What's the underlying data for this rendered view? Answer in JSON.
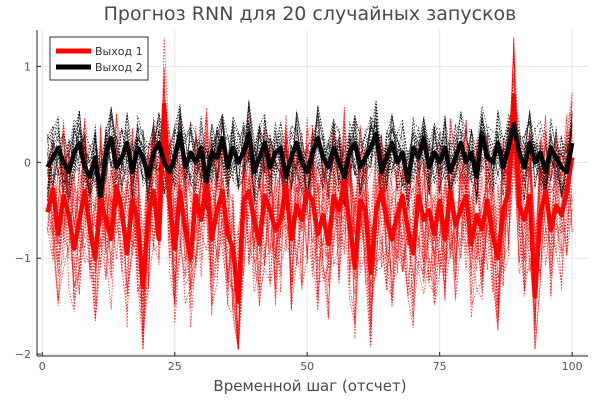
{
  "chart_data": {
    "type": "line",
    "title": "Прогноз RNN для 20 случайных запусков",
    "xlabel": "Временной шаг (отсчет)",
    "ylabel": "",
    "xlim": [
      -1,
      103
    ],
    "ylim": [
      -2.02,
      1.38
    ],
    "x_ticks": [
      0,
      25,
      50,
      75,
      100
    ],
    "y_ticks": [
      1,
      0,
      -1,
      -2
    ],
    "x_tick_labels": [
      "0",
      "25",
      "50",
      "75",
      "100"
    ],
    "y_tick_labels": [
      "1",
      "0",
      "−1",
      "−2"
    ],
    "grid": true,
    "legend_position": "top-left",
    "runs_count": 20,
    "series": [
      {
        "name": "Выход 1",
        "color": "#ff0000",
        "style": "solid-thick",
        "x_start": 1,
        "values": [
          -0.52,
          -0.28,
          -0.75,
          -0.35,
          -0.55,
          -0.9,
          -0.6,
          -0.3,
          -0.7,
          -1.0,
          -0.4,
          -0.6,
          -0.8,
          -0.25,
          -0.5,
          -0.95,
          -0.4,
          -0.6,
          -1.3,
          -0.55,
          -0.3,
          -0.8,
          0.6,
          -0.4,
          -0.9,
          -0.3,
          -0.7,
          -1.0,
          -0.35,
          -0.6,
          -0.2,
          -0.8,
          -0.5,
          -0.3,
          -0.75,
          -0.9,
          -1.45,
          -0.4,
          -0.3,
          -0.6,
          -0.85,
          -0.35,
          -0.5,
          -0.7,
          -0.6,
          -0.25,
          -0.8,
          -0.45,
          -0.6,
          -0.3,
          -0.4,
          -0.75,
          -0.55,
          -0.85,
          -0.35,
          -0.5,
          -0.2,
          -0.65,
          -1.1,
          -0.4,
          -0.5,
          -1.15,
          -0.5,
          -0.3,
          -0.6,
          -0.8,
          -0.55,
          -0.35,
          -0.7,
          -0.95,
          -0.35,
          -0.6,
          -0.5,
          -0.75,
          -0.4,
          -0.8,
          -0.3,
          -0.65,
          -0.5,
          -0.35,
          -0.85,
          -0.55,
          -0.7,
          -0.4,
          -0.75,
          -1.0,
          -0.5,
          -0.3,
          0.7,
          -0.45,
          -0.6,
          -0.35,
          -1.4,
          -0.55,
          -0.3,
          -0.7,
          -0.45,
          -0.55,
          -0.3,
          0.05
        ]
      },
      {
        "name": "Выход 2",
        "color": "#000000",
        "style": "solid-thick",
        "x_start": 1,
        "values": [
          -0.05,
          0.05,
          0.15,
          0.0,
          -0.1,
          0.1,
          0.2,
          -0.05,
          -0.15,
          0.05,
          -0.35,
          0.1,
          0.25,
          -0.05,
          0.05,
          0.2,
          -0.1,
          0.15,
          0.05,
          -0.15,
          0.1,
          0.2,
          0.0,
          -0.1,
          0.05,
          0.3,
          -0.05,
          0.1,
          0.0,
          0.15,
          -0.2,
          0.1,
          0.05,
          0.25,
          -0.05,
          0.15,
          0.0,
          0.1,
          0.3,
          -0.1,
          0.05,
          0.2,
          -0.05,
          0.1,
          0.15,
          -0.15,
          0.05,
          0.2,
          0.0,
          -0.1,
          0.1,
          0.25,
          0.05,
          -0.05,
          0.15,
          0.0,
          -0.15,
          0.1,
          0.2,
          -0.05,
          0.05,
          0.15,
          0.3,
          -0.1,
          0.05,
          0.2,
          0.0,
          0.1,
          -0.2,
          0.15,
          0.05,
          0.25,
          -0.05,
          0.1,
          0.0,
          0.15,
          -0.1,
          0.05,
          0.2,
          0.0,
          0.1,
          -0.15,
          0.3,
          0.05,
          0.0,
          0.2,
          -0.05,
          0.15,
          0.4,
          0.1,
          -0.05,
          0.2,
          0.0,
          0.1,
          -0.1,
          0.15,
          0.05,
          -0.05,
          -0.1,
          0.2
        ]
      }
    ]
  }
}
